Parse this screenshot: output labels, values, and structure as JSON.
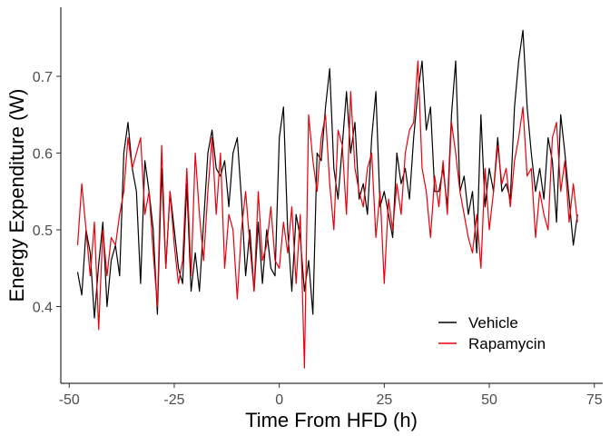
{
  "chart_data": {
    "type": "line",
    "xlabel": "Time From HFD (h)",
    "ylabel": "Energy Expenditure (W)",
    "xlim": [
      -52,
      77
    ],
    "ylim": [
      0.3,
      0.79
    ],
    "xticks": [
      -50,
      -25,
      0,
      25,
      50,
      75
    ],
    "xtick_labels": [
      "-50",
      "-25",
      "0",
      "25",
      "50",
      "75"
    ],
    "yticks": [
      0.4,
      0.5,
      0.6,
      0.7
    ],
    "ytick_labels": [
      "0.4",
      "0.5",
      "0.6",
      "0.7"
    ],
    "grid": false,
    "legend_position": "bottom-right",
    "x": [
      -48,
      -47,
      -46,
      -45,
      -44,
      -43,
      -42,
      -41,
      -40,
      -39,
      -38,
      -37,
      -36,
      -35,
      -34,
      -33,
      -32,
      -31,
      -30,
      -29,
      -28,
      -27,
      -26,
      -25,
      -24,
      -23,
      -22,
      -21,
      -20,
      -19,
      -18,
      -17,
      -16,
      -15,
      -14,
      -13,
      -12,
      -11,
      -10,
      -9,
      -8,
      -7,
      -6,
      -5,
      -4,
      -3,
      -2,
      -1,
      0,
      1,
      2,
      3,
      4,
      5,
      6,
      7,
      8,
      9,
      10,
      11,
      12,
      13,
      14,
      15,
      16,
      17,
      18,
      19,
      20,
      21,
      22,
      23,
      24,
      25,
      26,
      27,
      28,
      29,
      30,
      31,
      32,
      33,
      34,
      35,
      36,
      37,
      38,
      39,
      40,
      41,
      42,
      43,
      44,
      45,
      46,
      47,
      48,
      49,
      50,
      51,
      52,
      53,
      54,
      55,
      56,
      57,
      58,
      59,
      60,
      61,
      62,
      63,
      64,
      65,
      66,
      67,
      68,
      69,
      70,
      71
    ],
    "series": [
      {
        "name": "Vehicle",
        "color": "#000000",
        "values": [
          0.445,
          0.415,
          0.5,
          0.47,
          0.385,
          0.455,
          0.51,
          0.4,
          0.46,
          0.48,
          0.44,
          0.6,
          0.64,
          0.58,
          0.55,
          0.43,
          0.59,
          0.55,
          0.5,
          0.39,
          0.58,
          0.45,
          0.55,
          0.5,
          0.45,
          0.43,
          0.56,
          0.42,
          0.47,
          0.42,
          0.51,
          0.6,
          0.63,
          0.58,
          0.57,
          0.59,
          0.53,
          0.6,
          0.62,
          0.54,
          0.44,
          0.5,
          0.42,
          0.51,
          0.43,
          0.5,
          0.45,
          0.44,
          0.62,
          0.66,
          0.5,
          0.42,
          0.52,
          0.49,
          0.42,
          0.46,
          0.39,
          0.6,
          0.59,
          0.66,
          0.71,
          0.58,
          0.54,
          0.61,
          0.68,
          0.6,
          0.64,
          0.54,
          0.56,
          0.52,
          0.62,
          0.68,
          0.53,
          0.55,
          0.52,
          0.49,
          0.6,
          0.56,
          0.58,
          0.54,
          0.62,
          0.68,
          0.72,
          0.63,
          0.66,
          0.55,
          0.55,
          0.58,
          0.53,
          0.65,
          0.72,
          0.55,
          0.57,
          0.52,
          0.55,
          0.47,
          0.65,
          0.53,
          0.58,
          0.55,
          0.62,
          0.55,
          0.56,
          0.54,
          0.66,
          0.72,
          0.76,
          0.66,
          0.6,
          0.55,
          0.58,
          0.54,
          0.62,
          0.59,
          0.51,
          0.65,
          0.6,
          0.54,
          0.48,
          0.52
        ]
      },
      {
        "name": "Rapamycin",
        "color": "#e8000b",
        "values": [
          0.48,
          0.56,
          0.5,
          0.44,
          0.51,
          0.37,
          0.5,
          0.44,
          0.49,
          0.48,
          0.52,
          0.55,
          0.62,
          0.58,
          0.6,
          0.62,
          0.52,
          0.55,
          0.47,
          0.4,
          0.61,
          0.45,
          0.55,
          0.48,
          0.43,
          0.46,
          0.58,
          0.44,
          0.6,
          0.52,
          0.46,
          0.55,
          0.62,
          0.52,
          0.6,
          0.45,
          0.52,
          0.5,
          0.41,
          0.5,
          0.55,
          0.48,
          0.42,
          0.55,
          0.46,
          0.48,
          0.53,
          0.46,
          0.45,
          0.51,
          0.47,
          0.53,
          0.43,
          0.52,
          0.32,
          0.65,
          0.59,
          0.55,
          0.62,
          0.65,
          0.56,
          0.5,
          0.63,
          0.61,
          0.52,
          0.68,
          0.58,
          0.55,
          0.53,
          0.58,
          0.6,
          0.49,
          0.55,
          0.43,
          0.54,
          0.5,
          0.56,
          0.52,
          0.6,
          0.63,
          0.64,
          0.72,
          0.58,
          0.55,
          0.49,
          0.57,
          0.53,
          0.59,
          0.52,
          0.64,
          0.6,
          0.55,
          0.52,
          0.49,
          0.47,
          0.52,
          0.45,
          0.58,
          0.5,
          0.55,
          0.61,
          0.56,
          0.58,
          0.53,
          0.59,
          0.62,
          0.66,
          0.57,
          0.58,
          0.49,
          0.55,
          0.52,
          0.5,
          0.62,
          0.64,
          0.55,
          0.59,
          0.51,
          0.56,
          0.51
        ]
      }
    ]
  }
}
